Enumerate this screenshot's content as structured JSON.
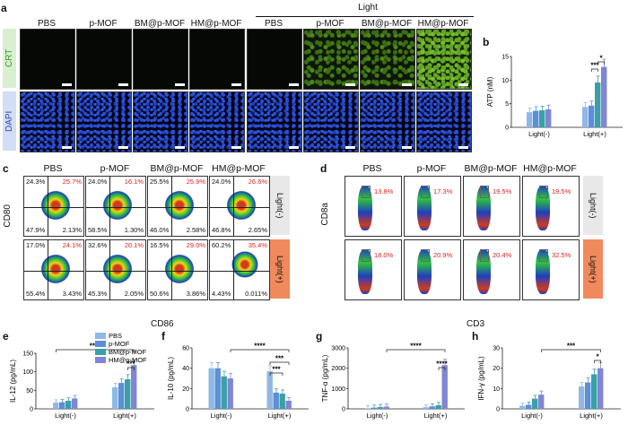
{
  "panel_letters": {
    "a": "a",
    "b": "b",
    "c": "c",
    "d": "d",
    "e": "e",
    "f": "f",
    "g": "g",
    "h": "h"
  },
  "panel_a": {
    "light_header": "Light",
    "columns": [
      "PBS",
      "p-MOF",
      "BM@p-MOF",
      "HM@p-MOF",
      "PBS",
      "p-MOF",
      "BM@p-MOF",
      "HM@p-MOF"
    ],
    "row_labels": [
      "CRT",
      "DAPI"
    ]
  },
  "panel_c": {
    "columns": [
      "PBS",
      "p-MOF",
      "BM@p-MOF",
      "HM@p-MOF"
    ],
    "y_label": "CD80",
    "x_label": "CD86",
    "row_labels": [
      "Light(-)",
      "Light(+)"
    ],
    "quadrants": [
      [
        {
          "ul": "24.3%",
          "ur": "25.7%",
          "ll": "47.9%",
          "lr": "2.13%"
        },
        {
          "ul": "24.0%",
          "ur": "16.1%",
          "ll": "58.5%",
          "lr": "1.30%"
        },
        {
          "ul": "25.5%",
          "ur": "25.9%",
          "ll": "46.0%",
          "lr": "2.58%"
        },
        {
          "ul": "24.0%",
          "ur": "26.6%",
          "ll": "46.8%",
          "lr": "2.65%"
        }
      ],
      [
        {
          "ul": "17.0%",
          "ur": "24.1%",
          "ll": "55.4%",
          "lr": "3.43%"
        },
        {
          "ul": "32.6%",
          "ur": "20.1%",
          "ll": "45.3%",
          "lr": "2.05%"
        },
        {
          "ul": "16.5%",
          "ur": "29.0%",
          "ll": "50.6%",
          "lr": "3.86%"
        },
        {
          "ul": "60.2%",
          "ur": "35.4%",
          "ll": "4.43%",
          "lr": "0.011%"
        }
      ]
    ]
  },
  "panel_d": {
    "columns": [
      "PBS",
      "p-MOF",
      "BM@p-MOF",
      "HM@p-MOF"
    ],
    "y_label": "CD8a",
    "x_label": "CD3",
    "row_labels": [
      "Light(-)",
      "Light(+)"
    ],
    "percents": [
      [
        "13.8%",
        "17.3%",
        "19.5%",
        "19.5%"
      ],
      [
        "18.0%",
        "20.9%",
        "20.4%",
        "32.5%"
      ]
    ]
  },
  "colors": {
    "PBS": "#8fb8e6",
    "p-MOF": "#5b8fd6",
    "BM@p-MOF": "#3aa0a8",
    "HM@p-MOF": "#7f86d4",
    "sig": "#111111",
    "red": "#e01f1f",
    "light_minus_box": "#e8e8e8",
    "light_plus_box": "#f08a5d"
  },
  "chart_data": [
    {
      "id": "b",
      "type": "bar",
      "ylabel": "ATP (nM)",
      "ylim": [
        0,
        15
      ],
      "yticks": [
        0,
        5,
        10,
        15
      ],
      "categories": [
        "Light(-)",
        "Light(+)"
      ],
      "series": [
        {
          "name": "PBS",
          "values": [
            3.2,
            4.3
          ]
        },
        {
          "name": "p-MOF",
          "values": [
            3.5,
            4.6
          ]
        },
        {
          "name": "BM@p-MOF",
          "values": [
            3.6,
            9.5
          ]
        },
        {
          "name": "HM@p-MOF",
          "values": [
            3.8,
            12.8
          ]
        }
      ],
      "annotations": [
        "***",
        "*"
      ]
    },
    {
      "id": "e",
      "type": "bar",
      "ylabel": "IL-12 (pg/mL)",
      "ylim": [
        0,
        150
      ],
      "yticks": [
        0,
        50,
        100,
        150
      ],
      "categories": [
        "Light(-)",
        "Light(+)"
      ],
      "legend": [
        "PBS",
        "p-MOF",
        "BM@p-MOF",
        "HM@p-MOF"
      ],
      "series": [
        {
          "name": "PBS",
          "values": [
            17,
            58
          ]
        },
        {
          "name": "p-MOF",
          "values": [
            18,
            70
          ]
        },
        {
          "name": "BM@p-MOF",
          "values": [
            22,
            80
          ]
        },
        {
          "name": "HM@p-MOF",
          "values": [
            28,
            118
          ]
        }
      ],
      "annotations": [
        "****",
        "***"
      ]
    },
    {
      "id": "f",
      "type": "bar",
      "ylabel": "IL-10 (pg/mL)",
      "ylim": [
        0,
        60
      ],
      "yticks": [
        0,
        20,
        40,
        60
      ],
      "categories": [
        "Light(-)",
        "Light(+)"
      ],
      "series": [
        {
          "name": "PBS",
          "values": [
            40,
            37
          ]
        },
        {
          "name": "p-MOF",
          "values": [
            40,
            16
          ]
        },
        {
          "name": "BM@p-MOF",
          "values": [
            32,
            15
          ]
        },
        {
          "name": "HM@p-MOF",
          "values": [
            30,
            8
          ]
        }
      ],
      "annotations": [
        "****",
        "***",
        "***"
      ]
    },
    {
      "id": "g",
      "type": "bar",
      "ylabel": "TNF-α (pg/mL)",
      "ylim": [
        0,
        3000
      ],
      "yticks": [
        0,
        1000,
        2000,
        3000
      ],
      "categories": [
        "Light(-)",
        "Light(+)"
      ],
      "series": [
        {
          "name": "PBS",
          "values": [
            30,
            80
          ]
        },
        {
          "name": "p-MOF",
          "values": [
            60,
            120
          ]
        },
        {
          "name": "BM@p-MOF",
          "values": [
            90,
            180
          ]
        },
        {
          "name": "HM@p-MOF",
          "values": [
            110,
            2150
          ]
        }
      ],
      "annotations": [
        "****",
        "****"
      ]
    },
    {
      "id": "h",
      "type": "bar",
      "ylabel": "IFN-γ (pg/mL)",
      "ylim": [
        0,
        30
      ],
      "yticks": [
        0,
        10,
        20,
        30
      ],
      "categories": [
        "Light(-)",
        "Light(+)"
      ],
      "series": [
        {
          "name": "PBS",
          "values": [
            1.5,
            11
          ]
        },
        {
          "name": "p-MOF",
          "values": [
            2,
            13
          ]
        },
        {
          "name": "BM@p-MOF",
          "values": [
            5,
            17
          ]
        },
        {
          "name": "HM@p-MOF",
          "values": [
            7,
            20
          ]
        }
      ],
      "annotations": [
        "***",
        "*"
      ]
    }
  ]
}
